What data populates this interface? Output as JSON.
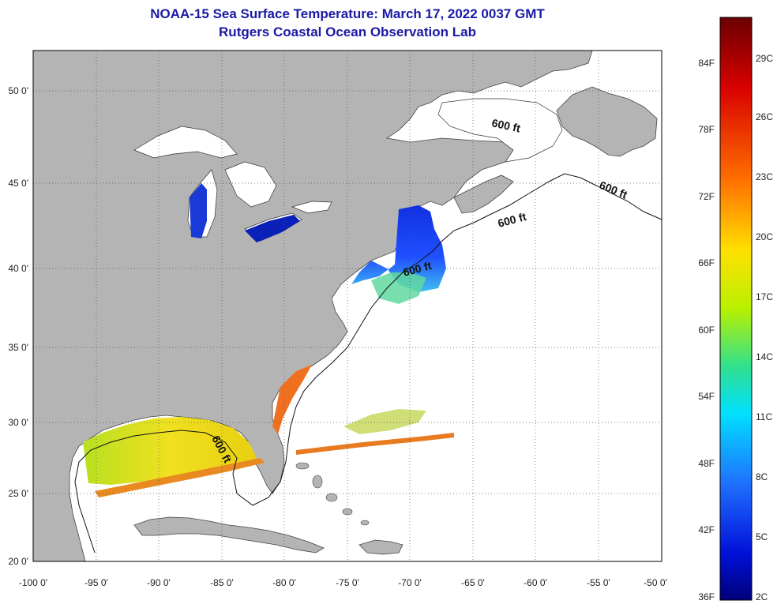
{
  "header": {
    "title": "NOAA-15 Sea Surface Temperature:  March 17, 2022 0037 GMT",
    "subtitle": "Rutgers Coastal Ocean Observation Lab"
  },
  "map": {
    "lat_labels": [
      "50 0'",
      "45 0'",
      "40 0'",
      "35 0'",
      "30 0'",
      "25 0'",
      "20 0'"
    ],
    "lon_labels": [
      "-100 0'",
      "-95 0'",
      "-90 0'",
      "-85 0'",
      "-80 0'",
      "-75 0'",
      "-70 0'",
      "-65 0'",
      "-60 0'",
      "-55 0'",
      "-50 0'"
    ],
    "contour_labels": [
      "600 ft",
      "600 ft",
      "600 ft",
      "600 ft",
      "600 ft"
    ],
    "land_color": "#b4b4b4",
    "ocean_color": "#ffffff"
  },
  "colorbar": {
    "f_labels": [
      "84F",
      "78F",
      "72F",
      "66F",
      "60F",
      "54F",
      "48F",
      "42F",
      "36F"
    ],
    "c_labels": [
      "29C",
      "26C",
      "23C",
      "20C",
      "17C",
      "14C",
      "11C",
      "8C",
      "5C",
      "2C"
    ],
    "colors": [
      "#800000",
      "#e00000",
      "#ff6a00",
      "#ffd400",
      "#c8f000",
      "#40e080",
      "#00e0ff",
      "#2070ff",
      "#0010e0",
      "#00008a"
    ]
  }
}
